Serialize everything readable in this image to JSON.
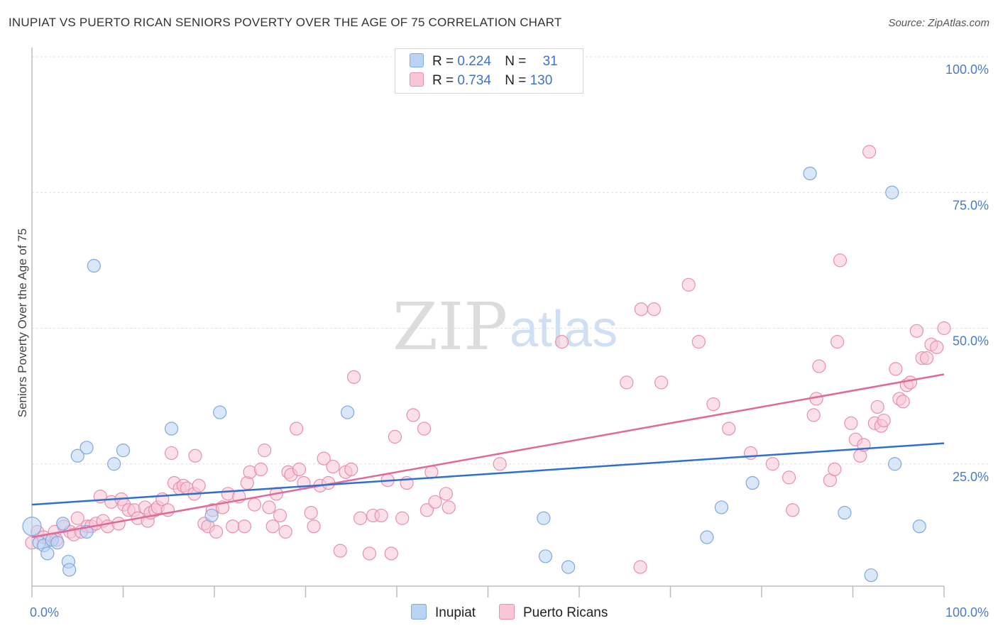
{
  "title": "INUPIAT VS PUERTO RICAN SENIORS POVERTY OVER THE AGE OF 75 CORRELATION CHART",
  "source": "Source: ZipAtlas.com",
  "watermark": {
    "zip": "ZIP",
    "atlas": "atlas"
  },
  "colors": {
    "inupiat_fill": "#b9d3f3",
    "inupiat_stroke": "#7ea9e0",
    "inupiat_line": "#2f6fcf",
    "pr_fill": "#f8c6d6",
    "pr_stroke": "#e98fae",
    "pr_line": "#e0689a",
    "grid": "#dedede",
    "axis_text": "#4a7cc6"
  },
  "legend": {
    "rows": [
      {
        "r_label": "R =",
        "r_value": "0.224",
        "n_label": "N =",
        "n_value": "31"
      },
      {
        "r_label": "R =",
        "r_value": "0.734",
        "n_label": "N =",
        "n_value": "130"
      }
    ]
  },
  "bottom_legend": [
    "Inupiat",
    "Puerto Ricans"
  ],
  "chart_data": {
    "type": "scatter",
    "title": "INUPIAT VS PUERTO RICAN SENIORS POVERTY OVER THE AGE OF 75 CORRELATION CHART",
    "xlabel": "",
    "ylabel": "Seniors Poverty Over the Age of 75",
    "xlim": [
      0,
      100
    ],
    "ylim": [
      0,
      100
    ],
    "x_tick_labels": [
      "0.0%",
      "100.0%"
    ],
    "y_tick_labels": [
      "100.0%",
      "75.0%",
      "50.0%",
      "25.0%"
    ],
    "y_ticks": [
      100,
      75,
      50,
      25
    ],
    "grid": true,
    "legend_position": "top-center",
    "series": [
      {
        "name": "Inupiat",
        "r": 0.224,
        "n": 31,
        "trend": {
          "x": [
            0,
            100
          ],
          "y": [
            17.5,
            28.8
          ]
        },
        "points": [
          [
            0.0,
            13.5
          ],
          [
            0.8,
            10.5
          ],
          [
            1.3,
            10.0
          ],
          [
            1.7,
            8.5
          ],
          [
            2.2,
            11.0
          ],
          [
            2.8,
            10.5
          ],
          [
            3.4,
            14.0
          ],
          [
            4.0,
            7.0
          ],
          [
            4.1,
            5.5
          ],
          [
            5.0,
            26.5
          ],
          [
            6.0,
            28.0
          ],
          [
            6.0,
            12.5
          ],
          [
            6.8,
            61.5
          ],
          [
            9.0,
            25.0
          ],
          [
            10.0,
            27.5
          ],
          [
            15.3,
            31.5
          ],
          [
            19.7,
            15.5
          ],
          [
            20.6,
            34.5
          ],
          [
            34.6,
            34.5
          ],
          [
            56.1,
            15.0
          ],
          [
            56.3,
            8.0
          ],
          [
            58.8,
            6.0
          ],
          [
            74.0,
            11.5
          ],
          [
            75.6,
            17.0
          ],
          [
            79.0,
            21.5
          ],
          [
            85.3,
            78.5
          ],
          [
            89.1,
            16.0
          ],
          [
            92.0,
            4.5
          ],
          [
            94.3,
            75.0
          ],
          [
            94.6,
            25.0
          ],
          [
            97.3,
            13.5
          ]
        ]
      },
      {
        "name": "Puerto Ricans",
        "r": 0.734,
        "n": 130,
        "trend": {
          "x": [
            0,
            100
          ],
          "y": [
            11.5,
            41.5
          ]
        },
        "points": [
          [
            0.0,
            10.5
          ],
          [
            0.6,
            12.5
          ],
          [
            1.3,
            11.5
          ],
          [
            1.9,
            11.0
          ],
          [
            2.5,
            12.5
          ],
          [
            2.7,
            11.0
          ],
          [
            3.5,
            13.5
          ],
          [
            4.2,
            12.5
          ],
          [
            4.6,
            12.0
          ],
          [
            5.0,
            15.0
          ],
          [
            5.4,
            12.5
          ],
          [
            6.1,
            13.5
          ],
          [
            6.5,
            13.5
          ],
          [
            7.0,
            14.0
          ],
          [
            7.5,
            19.0
          ],
          [
            7.8,
            14.5
          ],
          [
            8.3,
            13.5
          ],
          [
            8.7,
            18.0
          ],
          [
            9.5,
            14.0
          ],
          [
            9.8,
            18.5
          ],
          [
            10.1,
            17.5
          ],
          [
            10.6,
            16.5
          ],
          [
            11.2,
            16.5
          ],
          [
            11.6,
            15.0
          ],
          [
            12.4,
            17.0
          ],
          [
            12.7,
            14.5
          ],
          [
            13.0,
            16.0
          ],
          [
            13.5,
            16.5
          ],
          [
            13.8,
            17.0
          ],
          [
            14.3,
            18.5
          ],
          [
            14.9,
            16.5
          ],
          [
            15.3,
            27.0
          ],
          [
            15.6,
            21.5
          ],
          [
            16.2,
            20.5
          ],
          [
            16.6,
            21.0
          ],
          [
            17.0,
            20.5
          ],
          [
            17.8,
            19.5
          ],
          [
            17.9,
            26.5
          ],
          [
            18.3,
            21.0
          ],
          [
            18.9,
            14.0
          ],
          [
            19.3,
            13.5
          ],
          [
            19.8,
            16.5
          ],
          [
            20.2,
            12.5
          ],
          [
            20.9,
            17.0
          ],
          [
            21.5,
            19.5
          ],
          [
            22.0,
            13.5
          ],
          [
            22.7,
            19.0
          ],
          [
            23.3,
            13.5
          ],
          [
            23.6,
            21.5
          ],
          [
            23.9,
            23.5
          ],
          [
            24.4,
            17.5
          ],
          [
            25.1,
            24.0
          ],
          [
            25.5,
            27.5
          ],
          [
            26.0,
            17.0
          ],
          [
            26.4,
            13.5
          ],
          [
            26.8,
            19.5
          ],
          [
            27.2,
            15.5
          ],
          [
            27.8,
            12.5
          ],
          [
            28.1,
            23.5
          ],
          [
            28.4,
            23.0
          ],
          [
            29.0,
            31.5
          ],
          [
            29.3,
            24.0
          ],
          [
            29.8,
            21.5
          ],
          [
            30.6,
            16.0
          ],
          [
            30.9,
            13.5
          ],
          [
            31.6,
            21.0
          ],
          [
            32.0,
            26.0
          ],
          [
            32.5,
            21.5
          ],
          [
            33.0,
            24.5
          ],
          [
            33.8,
            9.0
          ],
          [
            34.4,
            23.5
          ],
          [
            35.0,
            24.0
          ],
          [
            35.3,
            41.0
          ],
          [
            36.0,
            15.0
          ],
          [
            37.0,
            8.5
          ],
          [
            37.4,
            15.5
          ],
          [
            38.3,
            15.5
          ],
          [
            39.0,
            22.0
          ],
          [
            39.4,
            8.5
          ],
          [
            39.8,
            30.0
          ],
          [
            40.6,
            15.0
          ],
          [
            41.1,
            21.5
          ],
          [
            41.8,
            34.0
          ],
          [
            43.0,
            31.5
          ],
          [
            43.3,
            16.5
          ],
          [
            43.8,
            23.5
          ],
          [
            44.2,
            18.0
          ],
          [
            45.4,
            19.5
          ],
          [
            45.7,
            17.0
          ],
          [
            51.3,
            25.0
          ],
          [
            58.1,
            47.5
          ],
          [
            65.2,
            40.0
          ],
          [
            66.7,
            6.0
          ],
          [
            66.8,
            53.5
          ],
          [
            68.2,
            53.5
          ],
          [
            69.0,
            40.0
          ],
          [
            72.0,
            58.0
          ],
          [
            73.1,
            47.5
          ],
          [
            74.7,
            36.0
          ],
          [
            76.4,
            31.5
          ],
          [
            78.8,
            27.0
          ],
          [
            81.2,
            25.0
          ],
          [
            83.0,
            22.5
          ],
          [
            83.4,
            16.5
          ],
          [
            85.7,
            34.0
          ],
          [
            86.0,
            37.0
          ],
          [
            86.3,
            43.0
          ],
          [
            87.5,
            22.0
          ],
          [
            88.0,
            24.0
          ],
          [
            88.3,
            47.5
          ],
          [
            88.6,
            62.5
          ],
          [
            89.8,
            32.5
          ],
          [
            90.3,
            29.5
          ],
          [
            90.8,
            26.5
          ],
          [
            91.2,
            28.5
          ],
          [
            91.8,
            82.5
          ],
          [
            92.4,
            32.5
          ],
          [
            92.7,
            35.5
          ],
          [
            93.1,
            32.0
          ],
          [
            93.4,
            33.0
          ],
          [
            94.7,
            42.5
          ],
          [
            95.1,
            37.0
          ],
          [
            95.5,
            36.5
          ],
          [
            95.9,
            39.5
          ],
          [
            96.3,
            40.0
          ],
          [
            97.0,
            49.5
          ],
          [
            97.6,
            44.5
          ],
          [
            98.1,
            44.5
          ],
          [
            98.6,
            47.0
          ],
          [
            99.2,
            46.5
          ],
          [
            100.0,
            50.0
          ]
        ]
      }
    ]
  }
}
